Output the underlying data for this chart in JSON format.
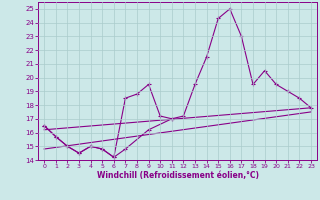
{
  "x_main": [
    0,
    1,
    2,
    3,
    4,
    5,
    6,
    7,
    8,
    9,
    10,
    11,
    12,
    13,
    14,
    15,
    16,
    17,
    18,
    19,
    20,
    21,
    22,
    23
  ],
  "y_main": [
    16.5,
    15.7,
    15.0,
    14.5,
    15.0,
    14.8,
    14.2,
    18.5,
    18.8,
    19.5,
    17.2,
    17.0,
    17.2,
    19.5,
    21.5,
    24.3,
    25.0,
    23.0,
    19.5,
    20.5,
    19.5,
    19.0,
    18.5,
    17.8
  ],
  "x_short": [
    0,
    1,
    2,
    3,
    4,
    5,
    6,
    7,
    9,
    11
  ],
  "y_short": [
    16.5,
    15.7,
    15.0,
    14.5,
    15.0,
    14.8,
    14.2,
    14.8,
    16.2,
    17.0
  ],
  "trend1_x": [
    0,
    23
  ],
  "trend1_y": [
    16.2,
    17.8
  ],
  "trend2_x": [
    0,
    23
  ],
  "trend2_y": [
    14.8,
    17.5
  ],
  "background_color": "#cce8e8",
  "grid_color": "#aacccc",
  "line_color": "#880088",
  "xlabel": "Windchill (Refroidissement éolien,°C)",
  "ylim": [
    14,
    25.5
  ],
  "xlim": [
    -0.5,
    23.5
  ],
  "yticks": [
    14,
    15,
    16,
    17,
    18,
    19,
    20,
    21,
    22,
    23,
    24,
    25
  ],
  "xticks": [
    0,
    1,
    2,
    3,
    4,
    5,
    6,
    7,
    8,
    9,
    10,
    11,
    12,
    13,
    14,
    15,
    16,
    17,
    18,
    19,
    20,
    21,
    22,
    23
  ]
}
